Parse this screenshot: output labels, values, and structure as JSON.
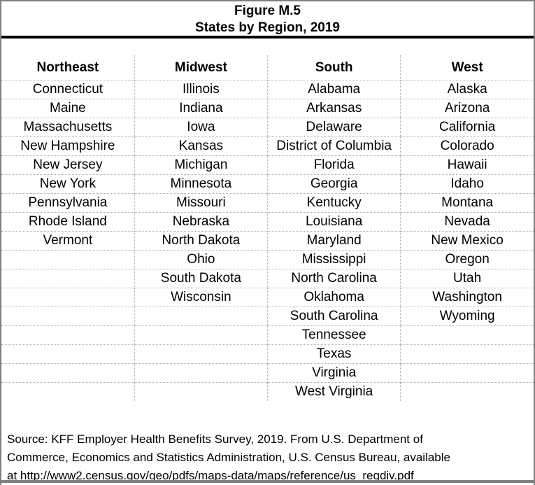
{
  "title": {
    "line1": "Figure M.5",
    "line2": "States by Region, 2019"
  },
  "table": {
    "columns": [
      {
        "header": "Northeast",
        "states": [
          "Connecticut",
          "Maine",
          "Massachusetts",
          "New Hampshire",
          "New Jersey",
          "New York",
          "Pennsylvania",
          "Rhode Island",
          "Vermont"
        ]
      },
      {
        "header": "Midwest",
        "states": [
          "Illinois",
          "Indiana",
          "Iowa",
          "Kansas",
          "Michigan",
          "Minnesota",
          "Missouri",
          "Nebraska",
          "North Dakota",
          "Ohio",
          "South Dakota",
          "Wisconsin"
        ]
      },
      {
        "header": "South",
        "states": [
          "Alabama",
          "Arkansas",
          "Delaware",
          "District of Columbia",
          "Florida",
          "Georgia",
          "Kentucky",
          "Louisiana",
          "Maryland",
          "Mississippi",
          "North Carolina",
          "Oklahoma",
          "South Carolina",
          "Tennessee",
          "Texas",
          "Virginia",
          "West Virginia"
        ]
      },
      {
        "header": "West",
        "states": [
          "Alaska",
          "Arizona",
          "California",
          "Colorado",
          "Hawaii",
          "Idaho",
          "Montana",
          "Nevada",
          "New Mexico",
          "Oregon",
          "Utah",
          "Washington",
          "Wyoming"
        ]
      }
    ]
  },
  "source": {
    "lines": [
      "Source: KFF Employer Health Benefits Survey, 2019. From U.S. Department of",
      "Commerce, Economics and Statistics Administration, U.S. Census Bureau, available",
      "at http://www2.census.gov/geo/pdfs/maps-data/maps/reference/us_regdiv.pdf"
    ]
  },
  "colors": {
    "frame_gray": "#7f7f7f",
    "title_divider_black": "#000000",
    "dotted_separator_gray": "#adadad",
    "text_black": "#000000"
  }
}
